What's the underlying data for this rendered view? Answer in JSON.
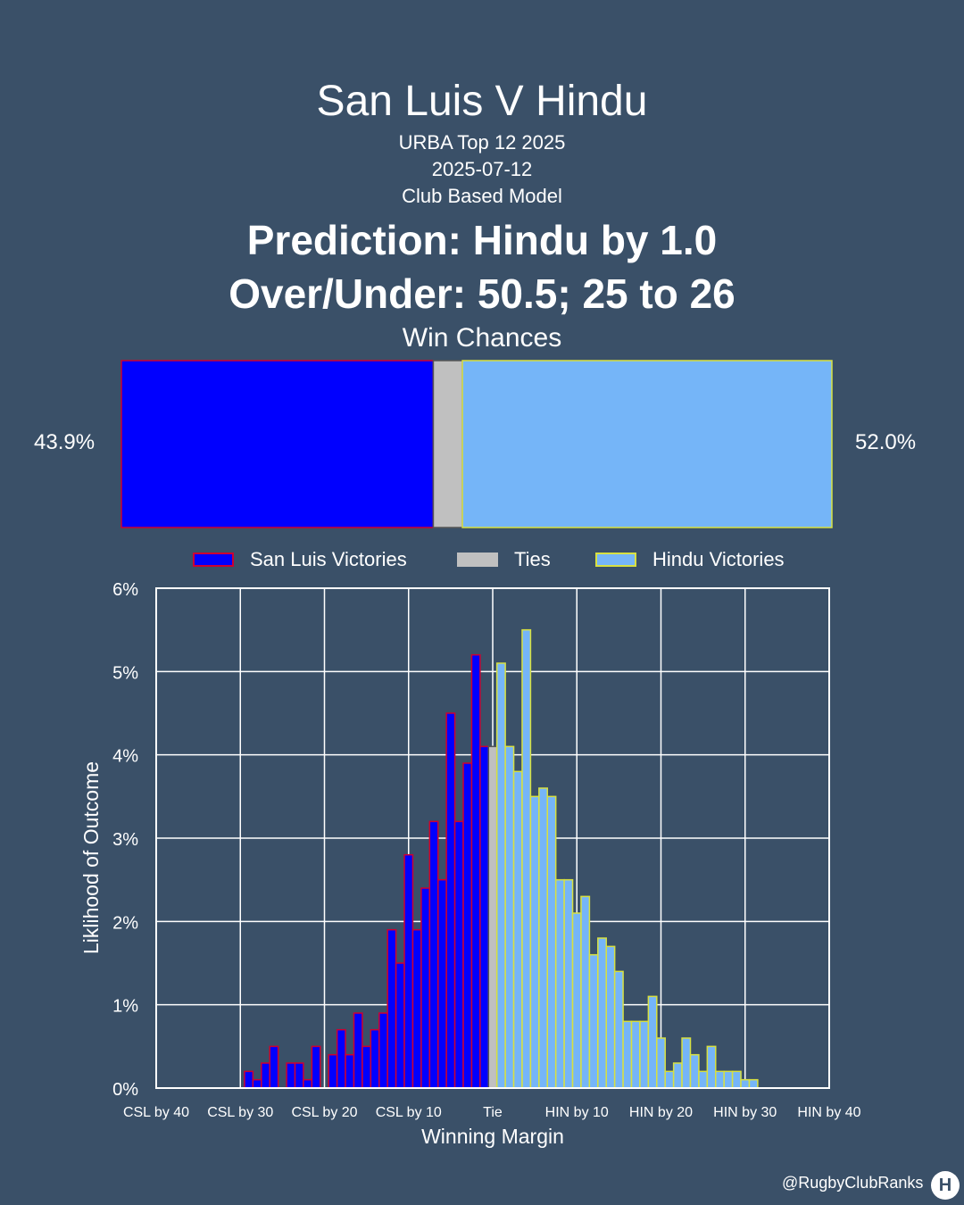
{
  "header": {
    "title": "San Luis V Hindu",
    "competition": "URBA Top 12 2025",
    "date": "2025-07-12",
    "model": "Club Based Model",
    "prediction": "Prediction: Hindu by 1.0",
    "over_under": "Over/Under: 50.5; 25 to 26",
    "win_chances_label": "Win Chances"
  },
  "win_chances": {
    "home_pct_label": "43.9%",
    "away_pct_label": "52.0%",
    "home": 43.9,
    "tie": 4.1,
    "away": 52.0,
    "colors": {
      "home": "#0000ff",
      "home_edge": "#cc0033",
      "tie": "#c0c0c0",
      "away": "#75b5f8",
      "away_edge": "#d8e040"
    }
  },
  "legend": {
    "items": [
      {
        "label": "San Luis Victories",
        "color": "#0000ff",
        "edge": "#cc0033"
      },
      {
        "label": "Ties",
        "color": "#c0c0c0",
        "edge": "#c0c0c0"
      },
      {
        "label": "Hindu Victories",
        "color": "#75b5f8",
        "edge": "#d8e040"
      }
    ]
  },
  "chart_data": {
    "type": "bar",
    "xlabel": "Winning Margin",
    "ylabel": "Liklihood of Outcome",
    "xlim": [
      -40,
      40
    ],
    "ylim": [
      0,
      6
    ],
    "grid": true,
    "x_ticks": [
      {
        "x": -40,
        "label": "CSL by 40"
      },
      {
        "x": -30,
        "label": "CSL by 30"
      },
      {
        "x": -20,
        "label": "CSL by 20"
      },
      {
        "x": -10,
        "label": "CSL by 10"
      },
      {
        "x": 0,
        "label": "Tie"
      },
      {
        "x": 10,
        "label": "HIN by 10"
      },
      {
        "x": 20,
        "label": "HIN by 20"
      },
      {
        "x": 30,
        "label": "HIN by 30"
      },
      {
        "x": 40,
        "label": "HIN by 40"
      }
    ],
    "y_ticks": [
      {
        "y": 0,
        "label": "0%"
      },
      {
        "y": 1,
        "label": "1%"
      },
      {
        "y": 2,
        "label": "2%"
      },
      {
        "y": 3,
        "label": "3%"
      },
      {
        "y": 4,
        "label": "4%"
      },
      {
        "y": 5,
        "label": "5%"
      },
      {
        "y": 6,
        "label": "6%"
      }
    ],
    "series": [
      {
        "name": "San Luis Victories",
        "x": [
          -29,
          -28,
          -27,
          -26,
          -24,
          -23,
          -22,
          -21,
          -19,
          -18,
          -17,
          -16,
          -15,
          -14,
          -13,
          -12,
          -11,
          -10,
          -9,
          -8,
          -7,
          -6,
          -5,
          -4,
          -3,
          -2,
          -1
        ],
        "values": [
          0.2,
          0.1,
          0.3,
          0.5,
          0.3,
          0.3,
          0.1,
          0.5,
          0.4,
          0.7,
          0.4,
          0.9,
          0.5,
          0.7,
          0.9,
          1.9,
          1.5,
          2.8,
          1.9,
          2.4,
          3.2,
          2.5,
          4.5,
          3.2,
          3.9,
          5.2,
          4.1
        ]
      },
      {
        "name": "Ties",
        "x": [
          0
        ],
        "values": [
          4.1
        ]
      },
      {
        "name": "Hindu Victories",
        "x": [
          1,
          2,
          3,
          4,
          5,
          6,
          7,
          8,
          9,
          10,
          11,
          12,
          13,
          14,
          15,
          16,
          17,
          18,
          19,
          20,
          21,
          22,
          23,
          24,
          25,
          26,
          27,
          28,
          29,
          30,
          31,
          32
        ],
        "values": [
          5.1,
          4.1,
          3.8,
          5.5,
          3.5,
          3.6,
          3.5,
          2.5,
          2.5,
          2.1,
          2.3,
          1.6,
          1.8,
          1.7,
          1.4,
          0.8,
          0.8,
          0.8,
          1.1,
          0.6,
          0.2,
          0.3,
          0.6,
          0.4,
          0.2,
          0.5,
          0.2,
          0.2,
          0.2,
          0.1,
          0.1,
          0
        ]
      }
    ]
  },
  "footer": {
    "handle": "@RugbyClubRanks"
  }
}
